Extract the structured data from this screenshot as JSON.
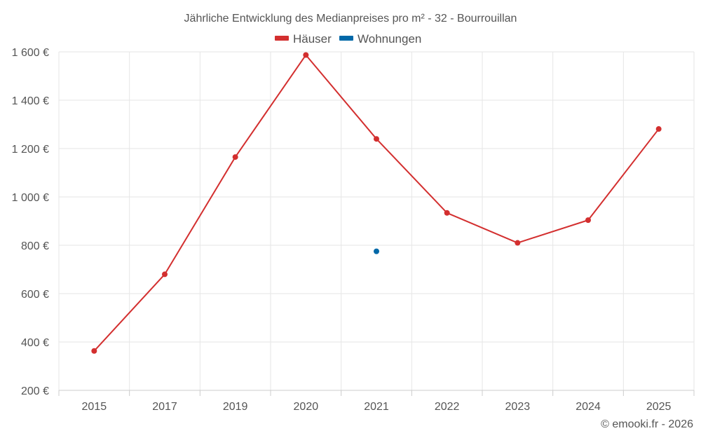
{
  "chart_data": {
    "type": "line",
    "title": "Jährliche Entwicklung des Medianpreises pro m² - 32 - Bourrouillan",
    "categories": [
      "2015",
      "2017",
      "2019",
      "2020",
      "2021",
      "2022",
      "2023",
      "2024",
      "2025"
    ],
    "y_ticks": [
      200,
      400,
      600,
      800,
      1000,
      1200,
      1400,
      1600
    ],
    "y_tick_labels": [
      "200 €",
      "400 €",
      "600 €",
      "800 €",
      "1 000 €",
      "1 200 €",
      "1 400 €",
      "1 600 €"
    ],
    "ylim": [
      200,
      1600
    ],
    "grid": true,
    "legend_position": "top-center",
    "series": [
      {
        "name": "Häuser",
        "color": "#d32f2f",
        "values": [
          363,
          680,
          1165,
          1587,
          1240,
          934,
          810,
          904,
          1281
        ]
      },
      {
        "name": "Wohnungen",
        "color": "#0068a8",
        "values": [
          null,
          null,
          null,
          null,
          775,
          null,
          null,
          null,
          null
        ]
      }
    ]
  },
  "credit": "© emooki.fr - 2026"
}
